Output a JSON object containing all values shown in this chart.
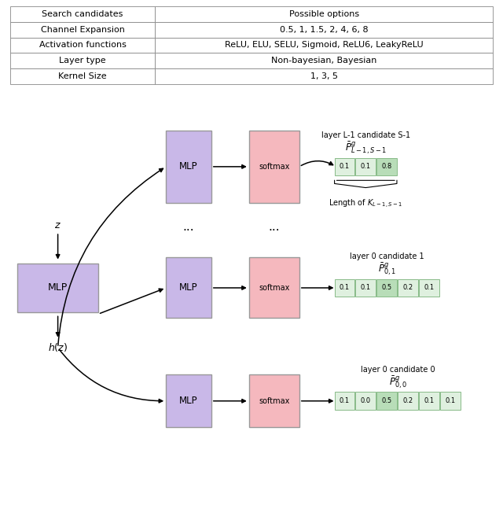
{
  "table": {
    "headers": [
      "Search candidates",
      "Possible options"
    ],
    "rows": [
      [
        "Channel Expansion",
        "0.5, 1, 1.5, 2, 4, 6, 8"
      ],
      [
        "Activation functions",
        "ReLU, ELU, SELU, Sigmoid, ReLU6, LeakyReLU"
      ],
      [
        "Layer type",
        "Non-bayesian, Bayesian"
      ],
      [
        "Kernel Size",
        "1, 3, 5"
      ]
    ]
  },
  "mlp_box_color": "#c9b8e8",
  "mlp_box_edge": "#999999",
  "softmax_box_color": "#f5b8be",
  "softmax_box_edge": "#999999",
  "prob_box_hi_color": "#b8ddb8",
  "prob_box_lo_color": "#dff0df",
  "prob_box_edge": "#88bb88",
  "bg_color": "#ffffff",
  "diagram": {
    "z_label": "$z$",
    "hz_label": "$h(z)$",
    "mlp_label": "MLP",
    "softmax_label": "softmax",
    "rows": [
      {
        "label_top": "layer L-1 candidate S-1",
        "label_prob": "$\\bar{P}^g_{L-1,S-1}$",
        "values": [
          "0.1",
          "0.1",
          "0.8"
        ],
        "highlight": [
          2
        ],
        "brace_label": "Length of $K_{L-1,S-1}$",
        "show_brace": true
      },
      {
        "label_top": "layer 0 candidate 1",
        "label_prob": "$\\bar{P}^g_{0,1}$",
        "values": [
          "0.1",
          "0.1",
          "0.5",
          "0.2",
          "0.1"
        ],
        "highlight": [
          2
        ],
        "show_brace": false
      },
      {
        "label_top": "layer 0 candidate 0",
        "label_prob": "$\\bar{P}^g_{0,0}$",
        "values": [
          "0.1",
          "0.0",
          "0.5",
          "0.2",
          "0.1",
          "0.1"
        ],
        "highlight": [
          2
        ],
        "show_brace": false
      }
    ]
  }
}
